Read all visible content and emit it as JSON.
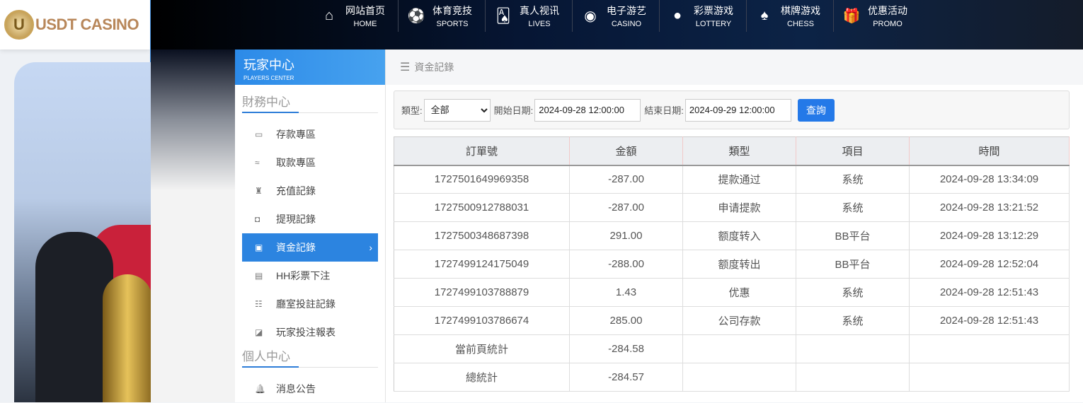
{
  "brand": {
    "logo_text": "USDT CASINO"
  },
  "nav": [
    {
      "cn": "网站首页",
      "en": "HOME",
      "icon": "home-icon",
      "glyph": "⌂"
    },
    {
      "cn": "体育竞技",
      "en": "SPORTS",
      "icon": "ball-icon",
      "glyph": "⚽"
    },
    {
      "cn": "真人视讯",
      "en": "LIVES",
      "icon": "cards-icon",
      "glyph": "🂡"
    },
    {
      "cn": "电子游艺",
      "en": "CASINO",
      "icon": "roulette-icon",
      "glyph": "◉"
    },
    {
      "cn": "彩票游戏",
      "en": "LOTTERY",
      "icon": "lottery-balls-icon",
      "glyph": "●"
    },
    {
      "cn": "棋牌游戏",
      "en": "CHESS",
      "icon": "spade-icon",
      "glyph": "♠"
    },
    {
      "cn": "优惠活动",
      "en": "PROMO",
      "icon": "gift-icon",
      "glyph": "🎁"
    }
  ],
  "sidebar": {
    "title": "玩家中心",
    "subtitle": "PLAYERS CENTER",
    "section1": "財務中心",
    "items": [
      {
        "label": "存款專區",
        "icon": "card-icon",
        "glyph": "▭"
      },
      {
        "label": "取款專區",
        "icon": "hand-money-icon",
        "glyph": "≈"
      },
      {
        "label": "充值記錄",
        "icon": "money-bag-icon",
        "glyph": "♜"
      },
      {
        "label": "提現記錄",
        "icon": "wallet-icon",
        "glyph": "◘"
      },
      {
        "label": "資金記錄",
        "icon": "fund-icon",
        "glyph": "▣"
      },
      {
        "label": "HH彩票下注",
        "icon": "list-icon",
        "glyph": "▤"
      },
      {
        "label": "廳室投註記錄",
        "icon": "list-bullets-icon",
        "glyph": "☷"
      },
      {
        "label": "玩家投注報表",
        "icon": "chart-icon",
        "glyph": "◪"
      }
    ],
    "section2": "個人中心",
    "items2": [
      {
        "label": "消息公告",
        "icon": "bell-icon",
        "glyph": "🔔"
      }
    ]
  },
  "breadcrumb": "資金記錄",
  "filter": {
    "type_label": "類型:",
    "type_value": "全部",
    "start_label": "開始日期:",
    "start_value": "2024-09-28 12:00:00",
    "end_label": "結束日期:",
    "end_value": "2024-09-29 12:00:00",
    "search_label": "查詢"
  },
  "table": {
    "headers": [
      "訂單號",
      "金額",
      "類型",
      "項目",
      "時間"
    ],
    "rows": [
      [
        "1727501649969358",
        "-287.00",
        "提款通过",
        "系统",
        "2024-09-28 13:34:09"
      ],
      [
        "1727500912788031",
        "-287.00",
        "申请提款",
        "系统",
        "2024-09-28 13:21:52"
      ],
      [
        "1727500348687398",
        "291.00",
        "额度转入",
        "BB平台",
        "2024-09-28 13:12:29"
      ],
      [
        "1727499124175049",
        "-288.00",
        "额度转出",
        "BB平台",
        "2024-09-28 12:52:04"
      ],
      [
        "1727499103788879",
        "1.43",
        "优惠",
        "系统",
        "2024-09-28 12:51:43"
      ],
      [
        "1727499103786674",
        "285.00",
        "公司存款",
        "系统",
        "2024-09-28 12:51:43"
      ]
    ],
    "page_total_label": "當前頁統計",
    "page_total": "-284.58",
    "grand_total_label": "總統計",
    "grand_total": "-284.57"
  }
}
